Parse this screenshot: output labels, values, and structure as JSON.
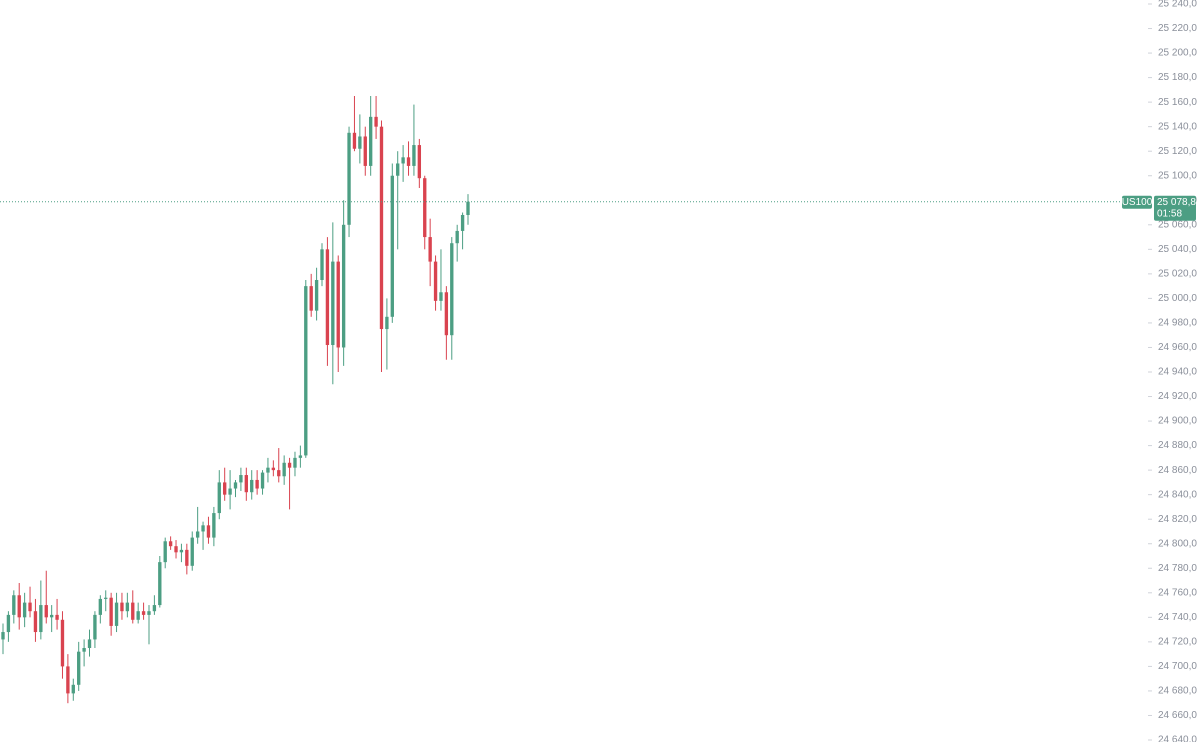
{
  "chart_data": {
    "type": "candlestick",
    "up_color": "#4c9e83",
    "down_color": "#d9434f",
    "open": [
      24722,
      24728,
      24742,
      24758,
      24740,
      24752,
      24745,
      24728,
      24750,
      24740,
      24742,
      24738,
      24700,
      24678,
      24685,
      24712,
      24715,
      24722,
      24742,
      24755,
      24756,
      24733,
      24752,
      24745,
      24752,
      24738,
      24745,
      24742,
      24745,
      24750,
      24785,
      24802,
      24798,
      24793,
      24795,
      24782,
      24805,
      24810,
      24815,
      24805,
      24825,
      24850,
      24840,
      24845,
      24850,
      24856,
      24842,
      24852,
      24845,
      24858,
      24862,
      24860,
      24855,
      24866,
      24862,
      24870,
      24872,
      25010,
      24990,
      25015,
      25040,
      24962,
      25030,
      24960,
      25060,
      25135,
      25122,
      25132,
      25108,
      25148,
      25140,
      24975,
      24985,
      25100,
      25110,
      25115,
      25108,
      25125,
      25098,
      25050,
      25030,
      24998,
      25005,
      24970,
      25045,
      25055,
      25068
    ],
    "high": [
      24735,
      24745,
      24762,
      24768,
      24760,
      24765,
      24755,
      24770,
      24778,
      24750,
      24755,
      24745,
      24710,
      24690,
      24720,
      24722,
      24730,
      24745,
      24758,
      24762,
      24760,
      24760,
      24760,
      24760,
      24762,
      24752,
      24752,
      24750,
      24758,
      24790,
      24805,
      24806,
      24803,
      24800,
      24800,
      24810,
      24830,
      24818,
      24822,
      24830,
      24860,
      24862,
      24860,
      24852,
      24862,
      24862,
      24860,
      24860,
      24860,
      24870,
      24868,
      24878,
      24872,
      24870,
      24875,
      24880,
      25015,
      25020,
      25025,
      25045,
      25050,
      25062,
      25035,
      25080,
      25140,
      25165,
      25150,
      25140,
      25165,
      25165,
      25145,
      25000,
      25110,
      25120,
      25125,
      25128,
      25158,
      25130,
      25100,
      25065,
      25035,
      25040,
      25010,
      25050,
      25060,
      25070,
      25085
    ],
    "low": [
      24710,
      24720,
      24735,
      24730,
      24732,
      24740,
      24720,
      24722,
      24735,
      24728,
      24730,
      24690,
      24670,
      24672,
      24680,
      24700,
      24708,
      24715,
      24735,
      24745,
      24725,
      24728,
      24738,
      24740,
      24735,
      24735,
      24738,
      24718,
      24742,
      24748,
      24780,
      24795,
      24788,
      24785,
      24775,
      24778,
      24800,
      24795,
      24800,
      24798,
      24820,
      24835,
      24828,
      24838,
      24843,
      24835,
      24836,
      24840,
      24840,
      24850,
      24855,
      24850,
      24848,
      24828,
      24855,
      24862,
      24870,
      24985,
      24982,
      25010,
      24945,
      24930,
      24940,
      24945,
      25050,
      25120,
      25110,
      25100,
      25100,
      25130,
      24940,
      24942,
      24980,
      25040,
      25095,
      25100,
      25100,
      25090,
      25040,
      25010,
      24990,
      24990,
      24950,
      24950,
      25030,
      25040,
      25060
    ],
    "close": [
      24728,
      24742,
      24758,
      24740,
      24752,
      24745,
      24728,
      24750,
      24740,
      24742,
      24738,
      24700,
      24678,
      24685,
      24712,
      24715,
      24722,
      24742,
      24755,
      24756,
      24733,
      24752,
      24745,
      24752,
      24738,
      24745,
      24742,
      24745,
      24750,
      24785,
      24802,
      24798,
      24793,
      24795,
      24782,
      24805,
      24810,
      24815,
      24805,
      24825,
      24850,
      24840,
      24845,
      24850,
      24856,
      24842,
      24852,
      24845,
      24858,
      24862,
      24860,
      24855,
      24866,
      24862,
      24870,
      24872,
      25010,
      24990,
      25015,
      25040,
      24962,
      25030,
      24960,
      25060,
      25135,
      25122,
      25132,
      25108,
      25148,
      25140,
      24975,
      24985,
      25100,
      25110,
      25115,
      25108,
      25125,
      25098,
      25050,
      25030,
      24998,
      25005,
      24970,
      25045,
      25055,
      25068,
      25078.8
    ],
    "ylim": [
      24640,
      25240
    ],
    "yticks": [
      {
        "value": 25240,
        "label": "25 240,0"
      },
      {
        "value": 25220,
        "label": "25 220,0"
      },
      {
        "value": 25200,
        "label": "25 200,0"
      },
      {
        "value": 25180,
        "label": "25 180,0"
      },
      {
        "value": 25160,
        "label": "25 160,0"
      },
      {
        "value": 25140,
        "label": "25 140,0"
      },
      {
        "value": 25120,
        "label": "25 120,0"
      },
      {
        "value": 25100,
        "label": "25 100,0"
      },
      {
        "value": 25080,
        "label": "25 080,0"
      },
      {
        "value": 25060,
        "label": "25 060,0"
      },
      {
        "value": 25040,
        "label": "25 040,0"
      },
      {
        "value": 25020,
        "label": "25 020,0"
      },
      {
        "value": 25000,
        "label": "25 000,0"
      },
      {
        "value": 24980,
        "label": "24 980,0"
      },
      {
        "value": 24960,
        "label": "24 960,0"
      },
      {
        "value": 24940,
        "label": "24 940,0"
      },
      {
        "value": 24920,
        "label": "24 920,0"
      },
      {
        "value": 24900,
        "label": "24 900,0"
      },
      {
        "value": 24880,
        "label": "24 880,0"
      },
      {
        "value": 24860,
        "label": "24 860,0"
      },
      {
        "value": 24840,
        "label": "24 840,0"
      },
      {
        "value": 24820,
        "label": "24 820,0"
      },
      {
        "value": 24800,
        "label": "24 800,0"
      },
      {
        "value": 24780,
        "label": "24 780,0"
      },
      {
        "value": 24760,
        "label": "24 760,0"
      },
      {
        "value": 24740,
        "label": "24 740,0"
      },
      {
        "value": 24720,
        "label": "24 720,0"
      },
      {
        "value": 24700,
        "label": "24 700,0"
      },
      {
        "value": 24680,
        "label": "24 680,0"
      },
      {
        "value": 24660,
        "label": "24 660,0"
      },
      {
        "value": 24640,
        "label": "24 640,0"
      }
    ],
    "last": {
      "symbol": "US100",
      "value": 25078.8,
      "label": "25 078,8",
      "countdown": "01:58"
    }
  }
}
